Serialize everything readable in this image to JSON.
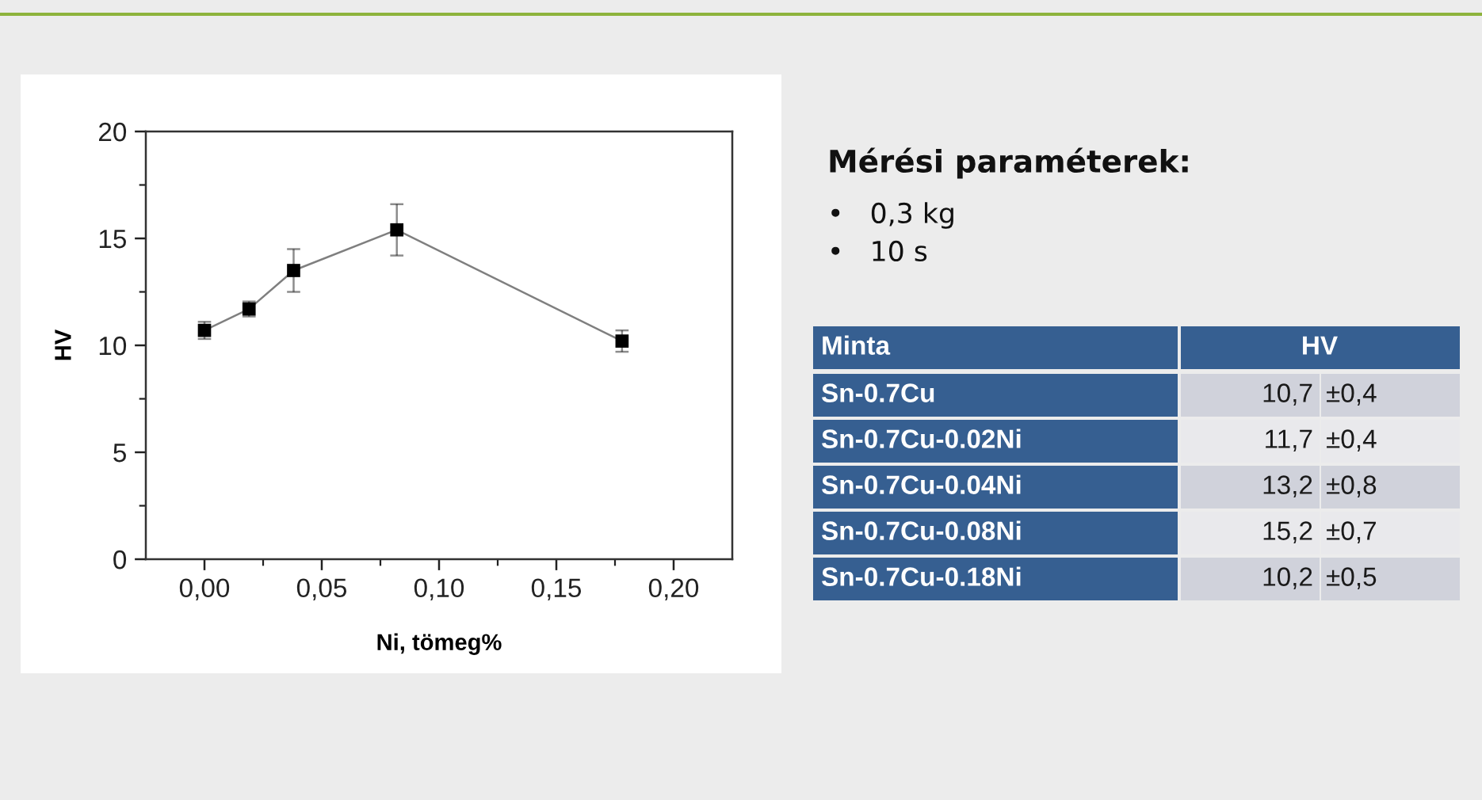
{
  "chart_data": [
    {
      "type": "line",
      "xlabel": "Ni, tömeg%",
      "ylabel": "HV",
      "x": [
        0.0,
        0.019,
        0.038,
        0.082,
        0.178
      ],
      "series": [
        {
          "color": "#000000",
          "values": [
            10.7,
            11.7,
            13.5,
            15.4,
            10.2
          ],
          "errors": [
            0.4,
            0.35,
            1.0,
            1.2,
            0.5
          ]
        }
      ],
      "xlim": [
        -0.025,
        0.225
      ],
      "xticks": [
        {
          "value": 0.0,
          "label": "0,00"
        },
        {
          "value": 0.025,
          "label": null
        },
        {
          "value": 0.05,
          "label": "0,05"
        },
        {
          "value": 0.075,
          "label": null
        },
        {
          "value": 0.1,
          "label": "0,10"
        },
        {
          "value": 0.125,
          "label": null
        },
        {
          "value": 0.15,
          "label": "0,15"
        },
        {
          "value": 0.175,
          "label": null
        },
        {
          "value": 0.2,
          "label": "0,20"
        }
      ],
      "ylim": [
        0,
        20
      ],
      "yticks": [
        0,
        {
          "value": 2.5,
          "label": null
        },
        5,
        {
          "value": 7.5,
          "label": null
        },
        10,
        {
          "value": 12.5,
          "label": null
        },
        15,
        {
          "value": 17.5,
          "label": null
        },
        20
      ],
      "marker": "square",
      "line_style": "solid"
    },
    {
      "type": "other",
      "title": "Mérési paraméterek:",
      "annotations": [
        "•   0,3 kg",
        "•   10 s"
      ],
      "categories": [
        "Minta",
        "HV"
      ],
      "y_categories": [
        "Sn-0.7Cu",
        "Sn-0.7Cu-0.02Ni",
        "Sn-0.7Cu-0.04Ni",
        "Sn-0.7Cu-0.08Ni",
        "Sn-0.7Cu-0.18Ni"
      ],
      "cell_labels": [
        [
          "10,7",
          "±0,4"
        ],
        [
          "11,7",
          "±0,4"
        ],
        [
          "13,2",
          "±0,8"
        ],
        [
          "15,2",
          "±0,7"
        ],
        [
          "10,2",
          "±0,5"
        ]
      ]
    }
  ]
}
